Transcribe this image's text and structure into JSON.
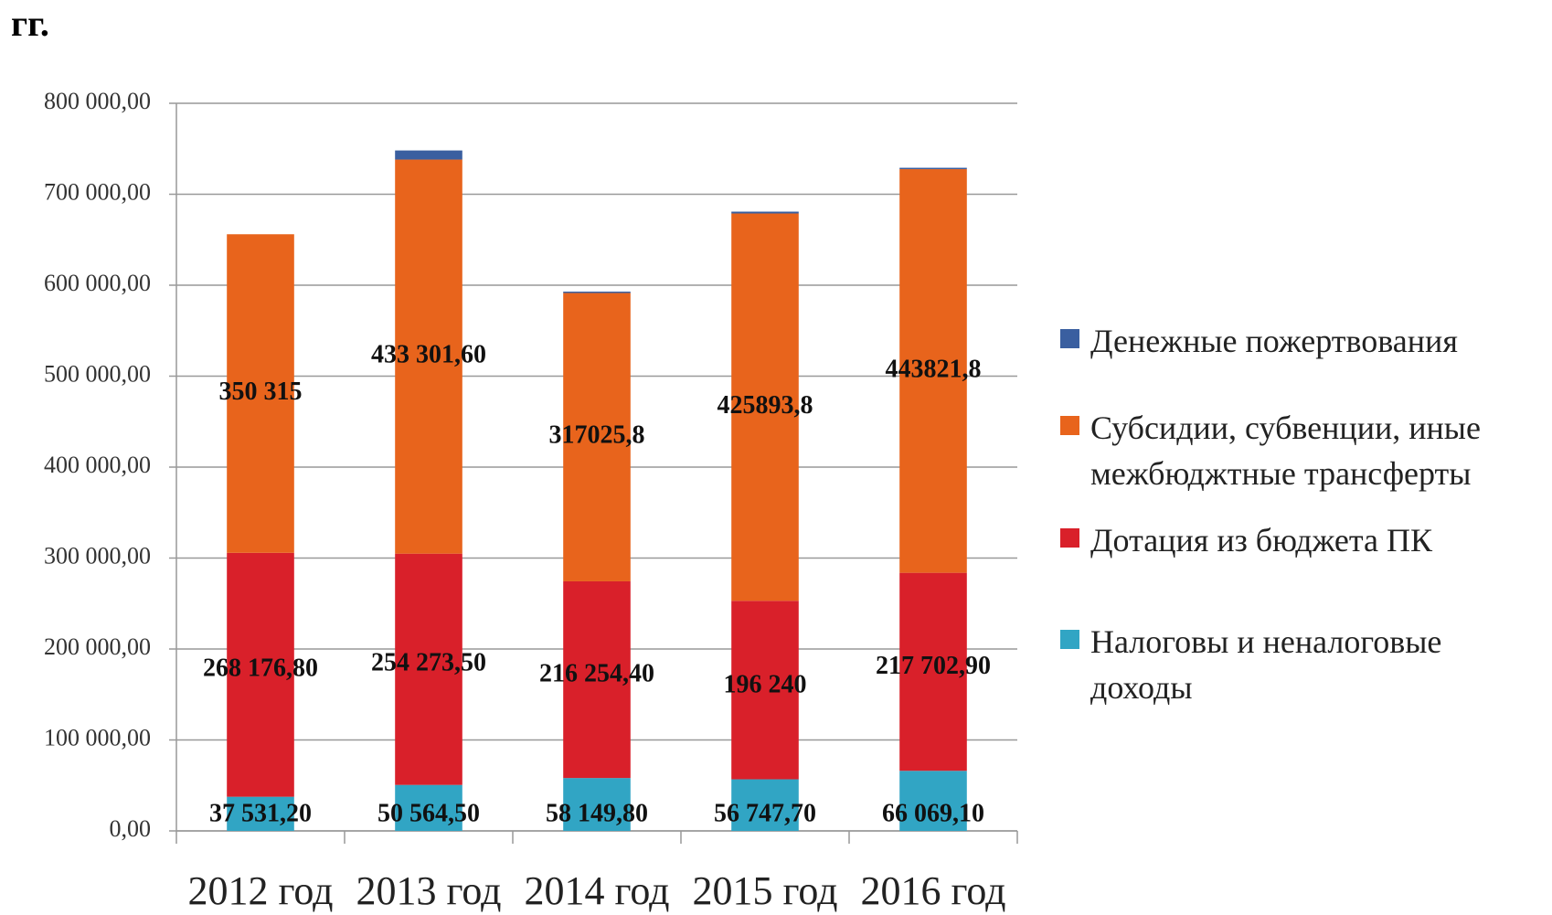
{
  "chart_data": {
    "type": "stacked_bar",
    "title": "гг.",
    "categories": [
      "2012 год",
      "2013 год",
      "2014 год",
      "2015 год",
      "2016 год"
    ],
    "series": [
      {
        "name": "Налоговы и неналоговые доходы",
        "color": "#31a5c4",
        "values": [
          37531.2,
          50564.5,
          58149.8,
          56747.7,
          66069.1
        ],
        "value_labels": [
          "37 531,20",
          "50 564,50",
          "58 149,80",
          "56 747,70",
          "66 069,10"
        ]
      },
      {
        "name": "Дотация из бюджета ПК",
        "color": "#d9202a",
        "values": [
          268176.8,
          254273.5,
          216254.4,
          196240,
          217702.9
        ],
        "value_labels": [
          "268 176,80",
          "254 273,50",
          "216 254,40",
          "196 240",
          "217 702,90"
        ]
      },
      {
        "name": "Субсидии, субвенции, иные межбюджтные трансферты",
        "color": "#e8641c",
        "values": [
          350315,
          433301.6,
          317025.8,
          425893.8,
          443821.8
        ],
        "value_labels": [
          "350 315",
          "433 301,60",
          "317025,8",
          "425893,8",
          "443821,8"
        ]
      },
      {
        "name": "Денежные пожертвования",
        "color": "#3a5fa0",
        "values": [
          0,
          10000,
          1500,
          2000,
          1500
        ]
      }
    ],
    "ylim": [
      0,
      800000
    ],
    "yticks": [
      {
        "value": 0,
        "label": "0,00"
      },
      {
        "value": 100000,
        "label": "100 000,00"
      },
      {
        "value": 200000,
        "label": "200 000,00"
      },
      {
        "value": 300000,
        "label": "300 000,00"
      },
      {
        "value": 400000,
        "label": "400 000,00"
      },
      {
        "value": 500000,
        "label": "500 000,00"
      },
      {
        "value": 600000,
        "label": "600 000,00"
      },
      {
        "value": 700000,
        "label": "700 000,00"
      },
      {
        "value": 800000,
        "label": "800 000,00"
      }
    ],
    "grid": true
  }
}
